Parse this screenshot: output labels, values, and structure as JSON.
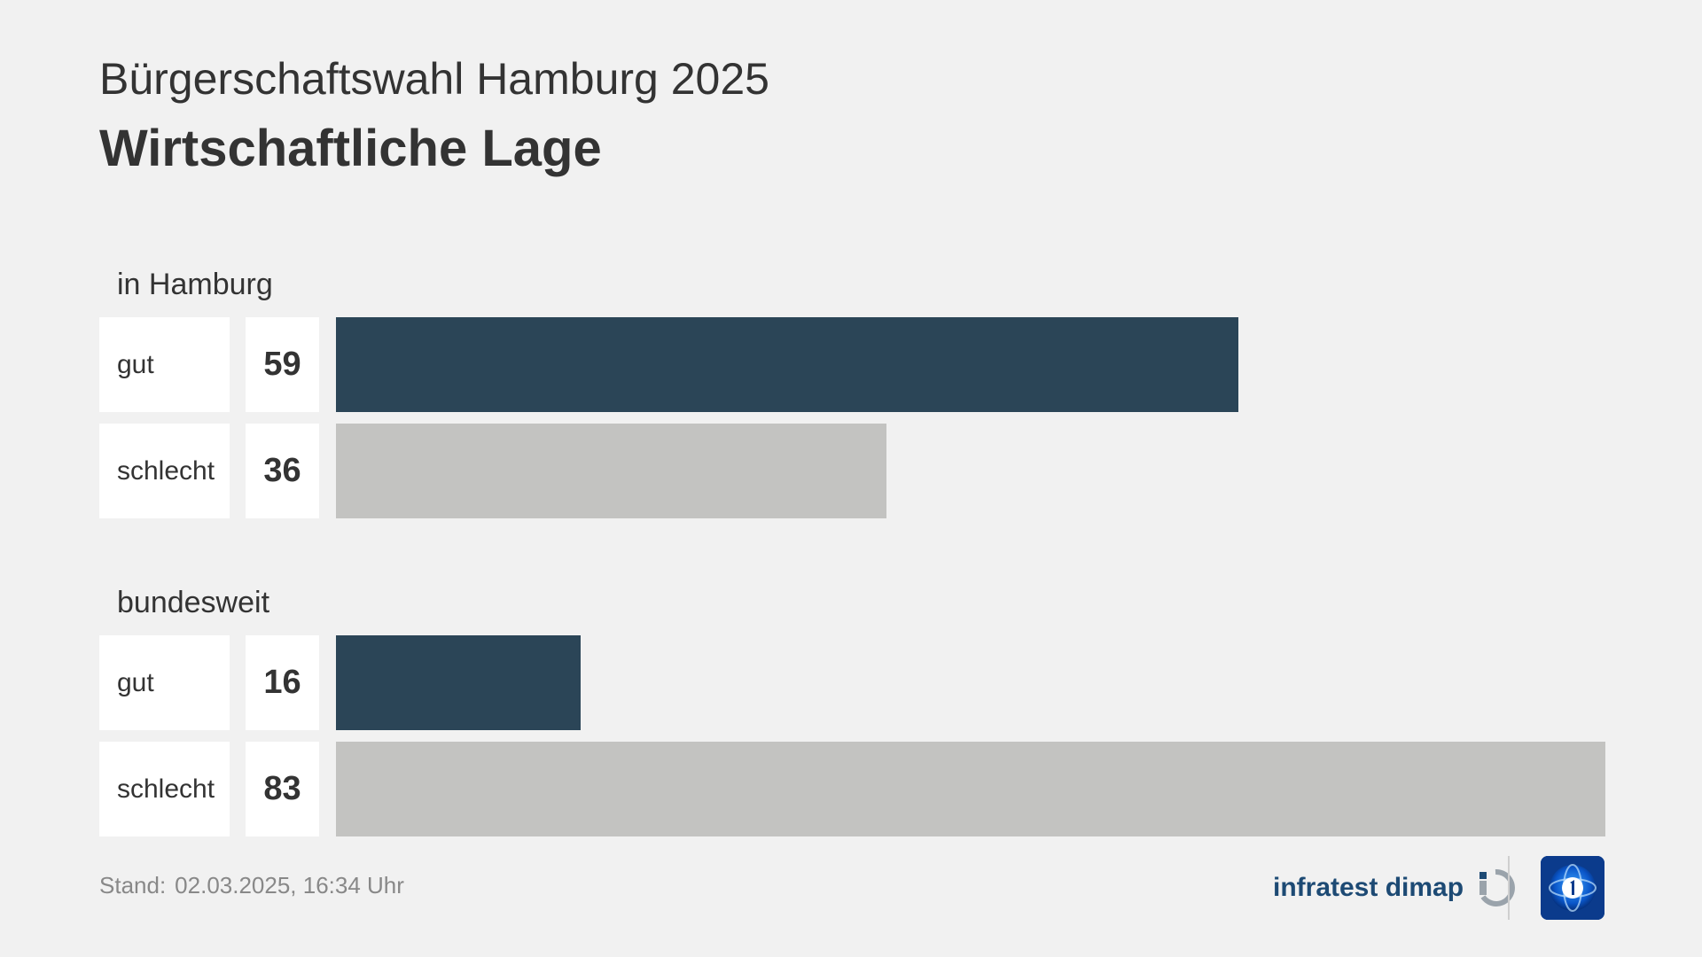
{
  "header": {
    "subtitle": "Bürgerschaftswahl Hamburg 2025",
    "title": "Wirtschaftliche Lage"
  },
  "colors": {
    "background": "#f1f1f1",
    "gut": "#2b4557",
    "schlecht": "#c3c3c1",
    "text": "#333333"
  },
  "chart_data": {
    "type": "bar",
    "orientation": "horizontal",
    "title": "Wirtschaftliche Lage",
    "subtitle": "Bürgerschaftswahl Hamburg 2025",
    "xlim": [
      0,
      83
    ],
    "groups": [
      {
        "label": "in Hamburg",
        "rows": [
          {
            "category": "gut",
            "value": 59,
            "value_label": "59",
            "color": "#2b4557"
          },
          {
            "category": "schlecht",
            "value": 36,
            "value_label": "36",
            "color": "#c3c3c1"
          }
        ]
      },
      {
        "label": "bundesweit",
        "rows": [
          {
            "category": "gut",
            "value": 16,
            "value_label": "16",
            "color": "#2b4557"
          },
          {
            "category": "schlecht",
            "value": 83,
            "value_label": "83",
            "color": "#c3c3c1"
          }
        ]
      }
    ]
  },
  "footer": {
    "stand_label": "Stand:",
    "stand_value": "02.03.2025, 16:34 Uhr",
    "source_logo_text": "infratest dimap",
    "logos": [
      "infratest-dimap-logo",
      "ard-tagesschau-logo"
    ]
  }
}
